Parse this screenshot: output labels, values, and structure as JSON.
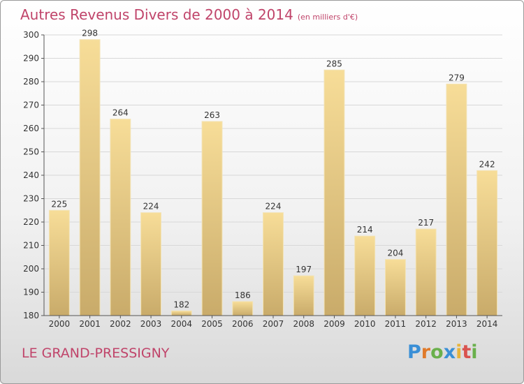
{
  "title": "Autres Revenus Divers de 2000 à 2014",
  "subtitle": "(en milliers d'€)",
  "location": "LE GRAND-PRESSIGNY",
  "logo_text": "Proxiti",
  "chart_data": {
    "type": "bar",
    "categories": [
      "2000",
      "2001",
      "2002",
      "2003",
      "2004",
      "2005",
      "2006",
      "2007",
      "2008",
      "2009",
      "2010",
      "2011",
      "2012",
      "2013",
      "2014"
    ],
    "values": [
      225,
      298,
      264,
      224,
      182,
      263,
      186,
      224,
      197,
      285,
      214,
      204,
      217,
      279,
      242
    ],
    "ylim": [
      180,
      300
    ],
    "yticks": [
      180,
      190,
      200,
      210,
      220,
      230,
      240,
      250,
      260,
      270,
      280,
      290,
      300
    ],
    "grid": true,
    "bar_color": "#e8c97c"
  }
}
